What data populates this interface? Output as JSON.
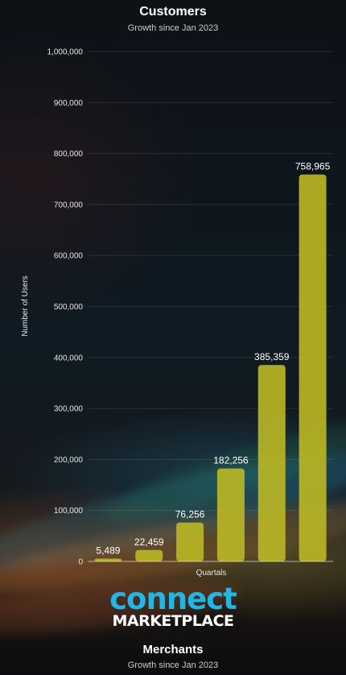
{
  "customers_chart": {
    "title": "Customers",
    "subtitle": "Growth since Jan 2023",
    "chart_data": {
      "type": "bar",
      "categories": [
        "",
        "",
        "",
        "",
        "",
        ""
      ],
      "values": [
        5489,
        22459,
        76256,
        182256,
        385359,
        758965
      ],
      "value_labels": [
        "5,489",
        "22,459",
        "76,256",
        "182,256",
        "385,359",
        "758,965"
      ],
      "xlabel": "Quartals",
      "ylabel": "Number of Users",
      "ylim": [
        0,
        1000000
      ],
      "yticks": [
        0,
        100000,
        200000,
        300000,
        400000,
        500000,
        600000,
        700000,
        800000,
        900000,
        1000000
      ],
      "ytick_labels": [
        "0",
        "100,000",
        "200,000",
        "300,000",
        "400,000",
        "500,000",
        "600,000",
        "700,000",
        "800,000",
        "900,000",
        "1,000,000"
      ],
      "grid": true,
      "bar_color": "#b9b525"
    }
  },
  "logo": {
    "line1": "connect",
    "line2": "MARKETPLACE",
    "accent_color": "#1fb6e8"
  },
  "merchants_chart": {
    "title": "Merchants",
    "subtitle": "Growth since Jan 2023"
  }
}
